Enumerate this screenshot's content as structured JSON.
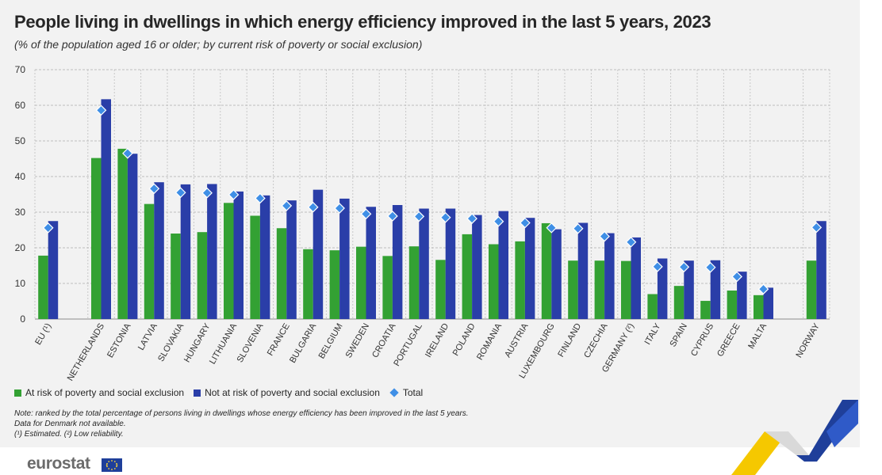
{
  "chart_data": {
    "type": "bar",
    "title": "People living in dwellings in which energy efficiency improved in the last 5 years, 2023",
    "subtitle": "(% of the population aged 16 or older; by current risk of poverty or social exclusion)",
    "xlabel": "",
    "ylabel": "",
    "ylim": [
      0,
      70
    ],
    "yticks": [
      "0",
      "10",
      "20",
      "30",
      "40",
      "50",
      "60",
      "70"
    ],
    "grid": true,
    "legend_position": "bottom-left",
    "categories": [
      "EU (¹)",
      "NETHERLANDS",
      "ESTONIA",
      "LATVIA",
      "SLOVAKIA",
      "HUNGARY",
      "LITHUANIA",
      "SLOVENIA",
      "FRANCE",
      "BULGARIA",
      "BELGIUM",
      "SWEDEN",
      "CROATIA",
      "PORTUGAL",
      "IRELAND",
      "POLAND",
      "ROMANIA",
      "AUSTRIA",
      "LUXEMBOURG",
      "FINLAND",
      "CZECHIA",
      "GERMANY (²)",
      "ITALY",
      "SPAIN",
      "CYPRUS",
      "GREECE",
      "MALTA",
      "NORWAY"
    ],
    "series": [
      {
        "name": "At risk of poverty and social exclusion",
        "color": "#33a133",
        "kind": "bar",
        "values": [
          17.8,
          45.2,
          47.8,
          32.3,
          24.0,
          24.4,
          32.6,
          29.0,
          25.5,
          19.6,
          19.3,
          20.3,
          17.7,
          20.4,
          16.6,
          23.8,
          21.0,
          21.8,
          26.9,
          16.4,
          16.4,
          16.3,
          7.0,
          9.3,
          5.1,
          8.0,
          6.7,
          16.4
        ]
      },
      {
        "name": "Not at risk of poverty and social exclusion",
        "color": "#2a3ea8",
        "kind": "bar",
        "values": [
          27.5,
          61.7,
          46.4,
          38.4,
          37.8,
          37.9,
          35.8,
          34.7,
          33.3,
          36.3,
          33.8,
          31.5,
          32.0,
          31.0,
          31.0,
          29.2,
          30.3,
          28.4,
          25.2,
          27.0,
          24.1,
          22.9,
          17.0,
          16.4,
          16.5,
          13.3,
          8.8,
          27.5
        ]
      },
      {
        "name": "Total",
        "color": "#3f8fe6",
        "kind": "marker",
        "values": [
          25.6,
          58.6,
          46.5,
          36.6,
          35.5,
          35.4,
          34.9,
          33.9,
          31.8,
          31.4,
          31.1,
          29.5,
          28.9,
          28.8,
          28.5,
          28.2,
          27.4,
          27.0,
          25.6,
          25.4,
          23.2,
          21.6,
          14.7,
          14.6,
          14.5,
          11.9,
          8.4,
          25.7
        ]
      }
    ],
    "notes": [
      "Note: ranked by the total percentage of persons living in dwellings whose energy efficiency has been improved in the last 5 years.",
      "Data for Denmark not available.",
      "(¹) Estimated. (²) Low reliability."
    ]
  },
  "brand": {
    "name": "eurostat"
  }
}
